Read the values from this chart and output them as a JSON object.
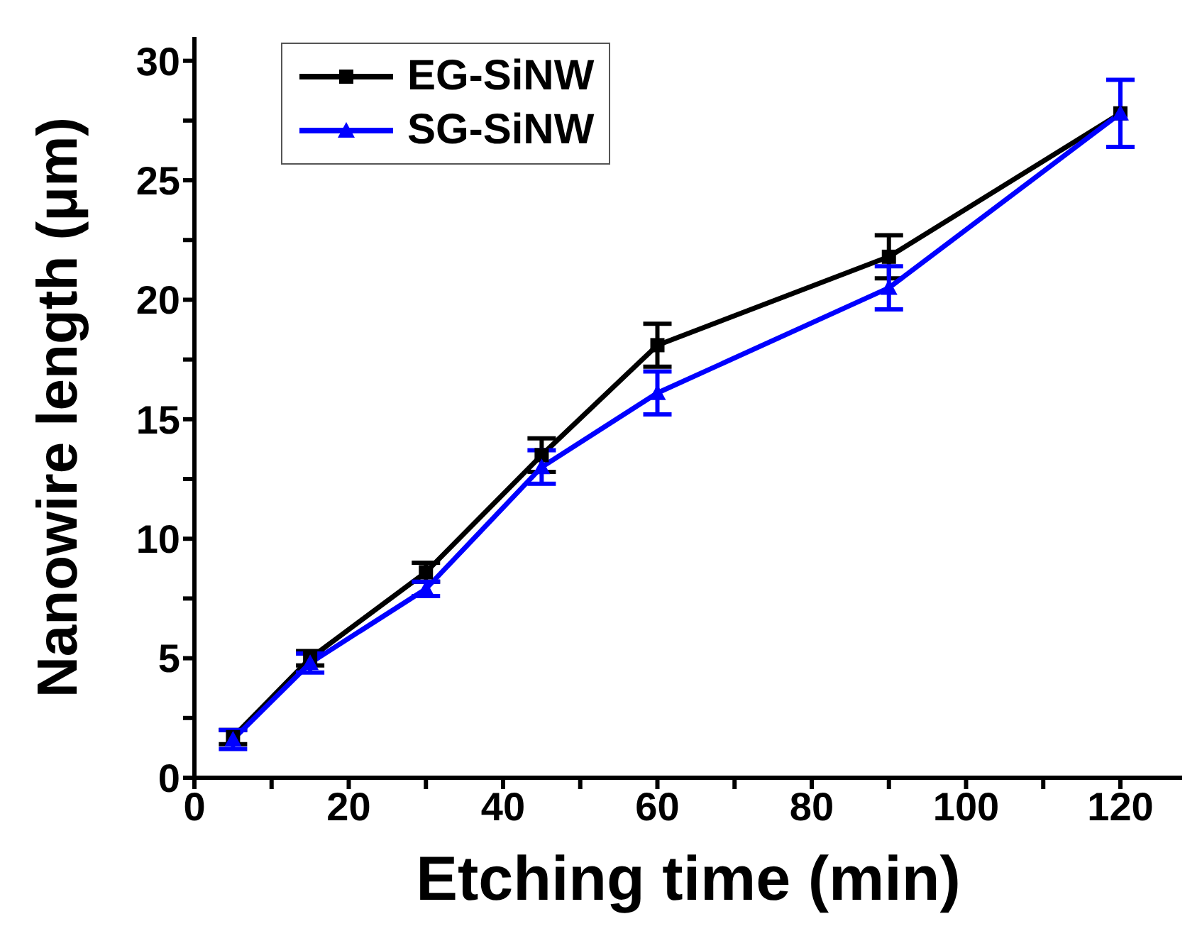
{
  "chart_data": {
    "type": "line",
    "xlabel": "Etching time (min)",
    "ylabel": "Nanowire length (μm)",
    "x": [
      5,
      15,
      30,
      45,
      60,
      90,
      120
    ],
    "series": [
      {
        "name": "EG-SiNW",
        "color": "#000000",
        "marker": "square",
        "values": [
          1.7,
          5.0,
          8.6,
          13.5,
          18.1,
          21.8,
          27.8
        ],
        "errors": [
          0.3,
          0.3,
          0.4,
          0.7,
          0.9,
          0.9,
          null
        ]
      },
      {
        "name": "SG-SiNW",
        "color": "#0000ff",
        "marker": "triangle",
        "values": [
          1.6,
          4.8,
          7.9,
          13.0,
          16.1,
          20.5,
          27.8
        ],
        "errors": [
          0.4,
          0.4,
          0.3,
          0.7,
          0.9,
          0.9,
          1.4
        ]
      }
    ],
    "xlim": [
      0,
      128
    ],
    "xticks": [
      0,
      {
        "value": 10,
        "label": null
      },
      20,
      {
        "value": 30,
        "label": null
      },
      40,
      {
        "value": 50,
        "label": null
      },
      60,
      {
        "value": 70,
        "label": null
      },
      80,
      {
        "value": 90,
        "label": null
      },
      100,
      {
        "value": 110,
        "label": null
      },
      120
    ],
    "ylim": [
      0,
      31
    ],
    "yticks": [
      0,
      {
        "value": 2.5,
        "label": null
      },
      5,
      {
        "value": 7.5,
        "label": null
      },
      10,
      {
        "value": 12.5,
        "label": null
      },
      15,
      {
        "value": 17.5,
        "label": null
      },
      20,
      {
        "value": 22.5,
        "label": null
      },
      25,
      {
        "value": 27.5,
        "label": null
      },
      30
    ],
    "grid": false,
    "legend": "top left",
    "line_style": "solid"
  }
}
